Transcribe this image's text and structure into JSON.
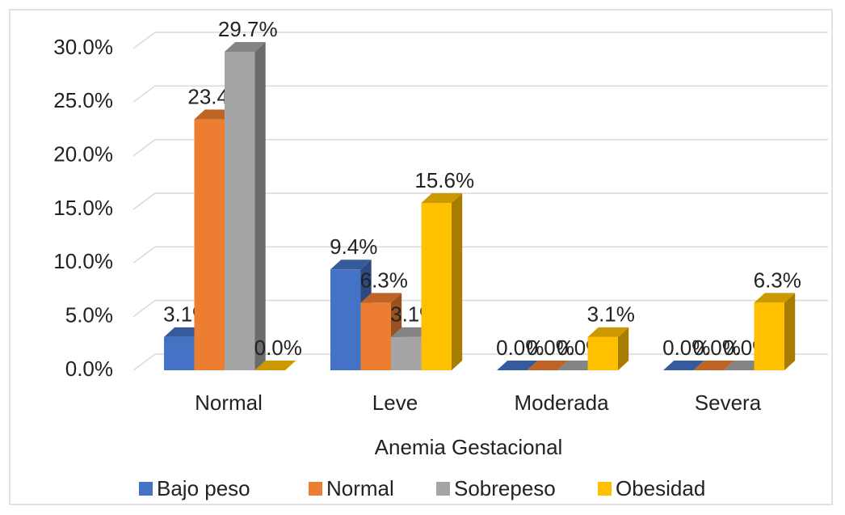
{
  "chart_data": {
    "type": "bar3d",
    "x_label": "Anemia Gestacional",
    "categories": [
      "Normal",
      "Leve",
      "Moderada",
      "Severa"
    ],
    "series": [
      {
        "name": "Bajo peso",
        "color": "#4472c4",
        "values": [
          3.1,
          9.4,
          0,
          0
        ],
        "value_labels": [
          "3.1%",
          "9.4%",
          "0.0%",
          "0.0%"
        ]
      },
      {
        "name": "Normal",
        "color": "#ed7d31",
        "values": [
          23.4,
          6.3,
          0,
          0
        ],
        "value_labels": [
          "23.4%",
          "6.3%",
          "0.0%",
          "0.0%"
        ]
      },
      {
        "name": "Sobrepeso",
        "color": "#a5a5a5",
        "values": [
          29.7,
          3.1,
          0,
          0
        ],
        "value_labels": [
          "29.7%",
          "3.1%",
          "0.0%",
          "0.0%"
        ]
      },
      {
        "name": "Obesidad",
        "color": "#ffc000",
        "values": [
          0,
          15.6,
          3.1,
          6.3
        ],
        "value_labels": [
          "0.0%",
          "15.6%",
          "3.1%",
          "6.3%"
        ]
      }
    ],
    "ylim": [
      0,
      30
    ],
    "yticks": [
      {
        "value": 0,
        "label": "0.0%"
      },
      {
        "value": 5,
        "label": "5.0%"
      },
      {
        "value": 10,
        "label": "10.0%"
      },
      {
        "value": 15,
        "label": "15.0%"
      },
      {
        "value": 20,
        "label": "20.0%"
      },
      {
        "value": 25,
        "label": "25.0%"
      },
      {
        "value": 30,
        "label": "30.0%"
      }
    ],
    "grid": true,
    "legend": "bottom"
  }
}
